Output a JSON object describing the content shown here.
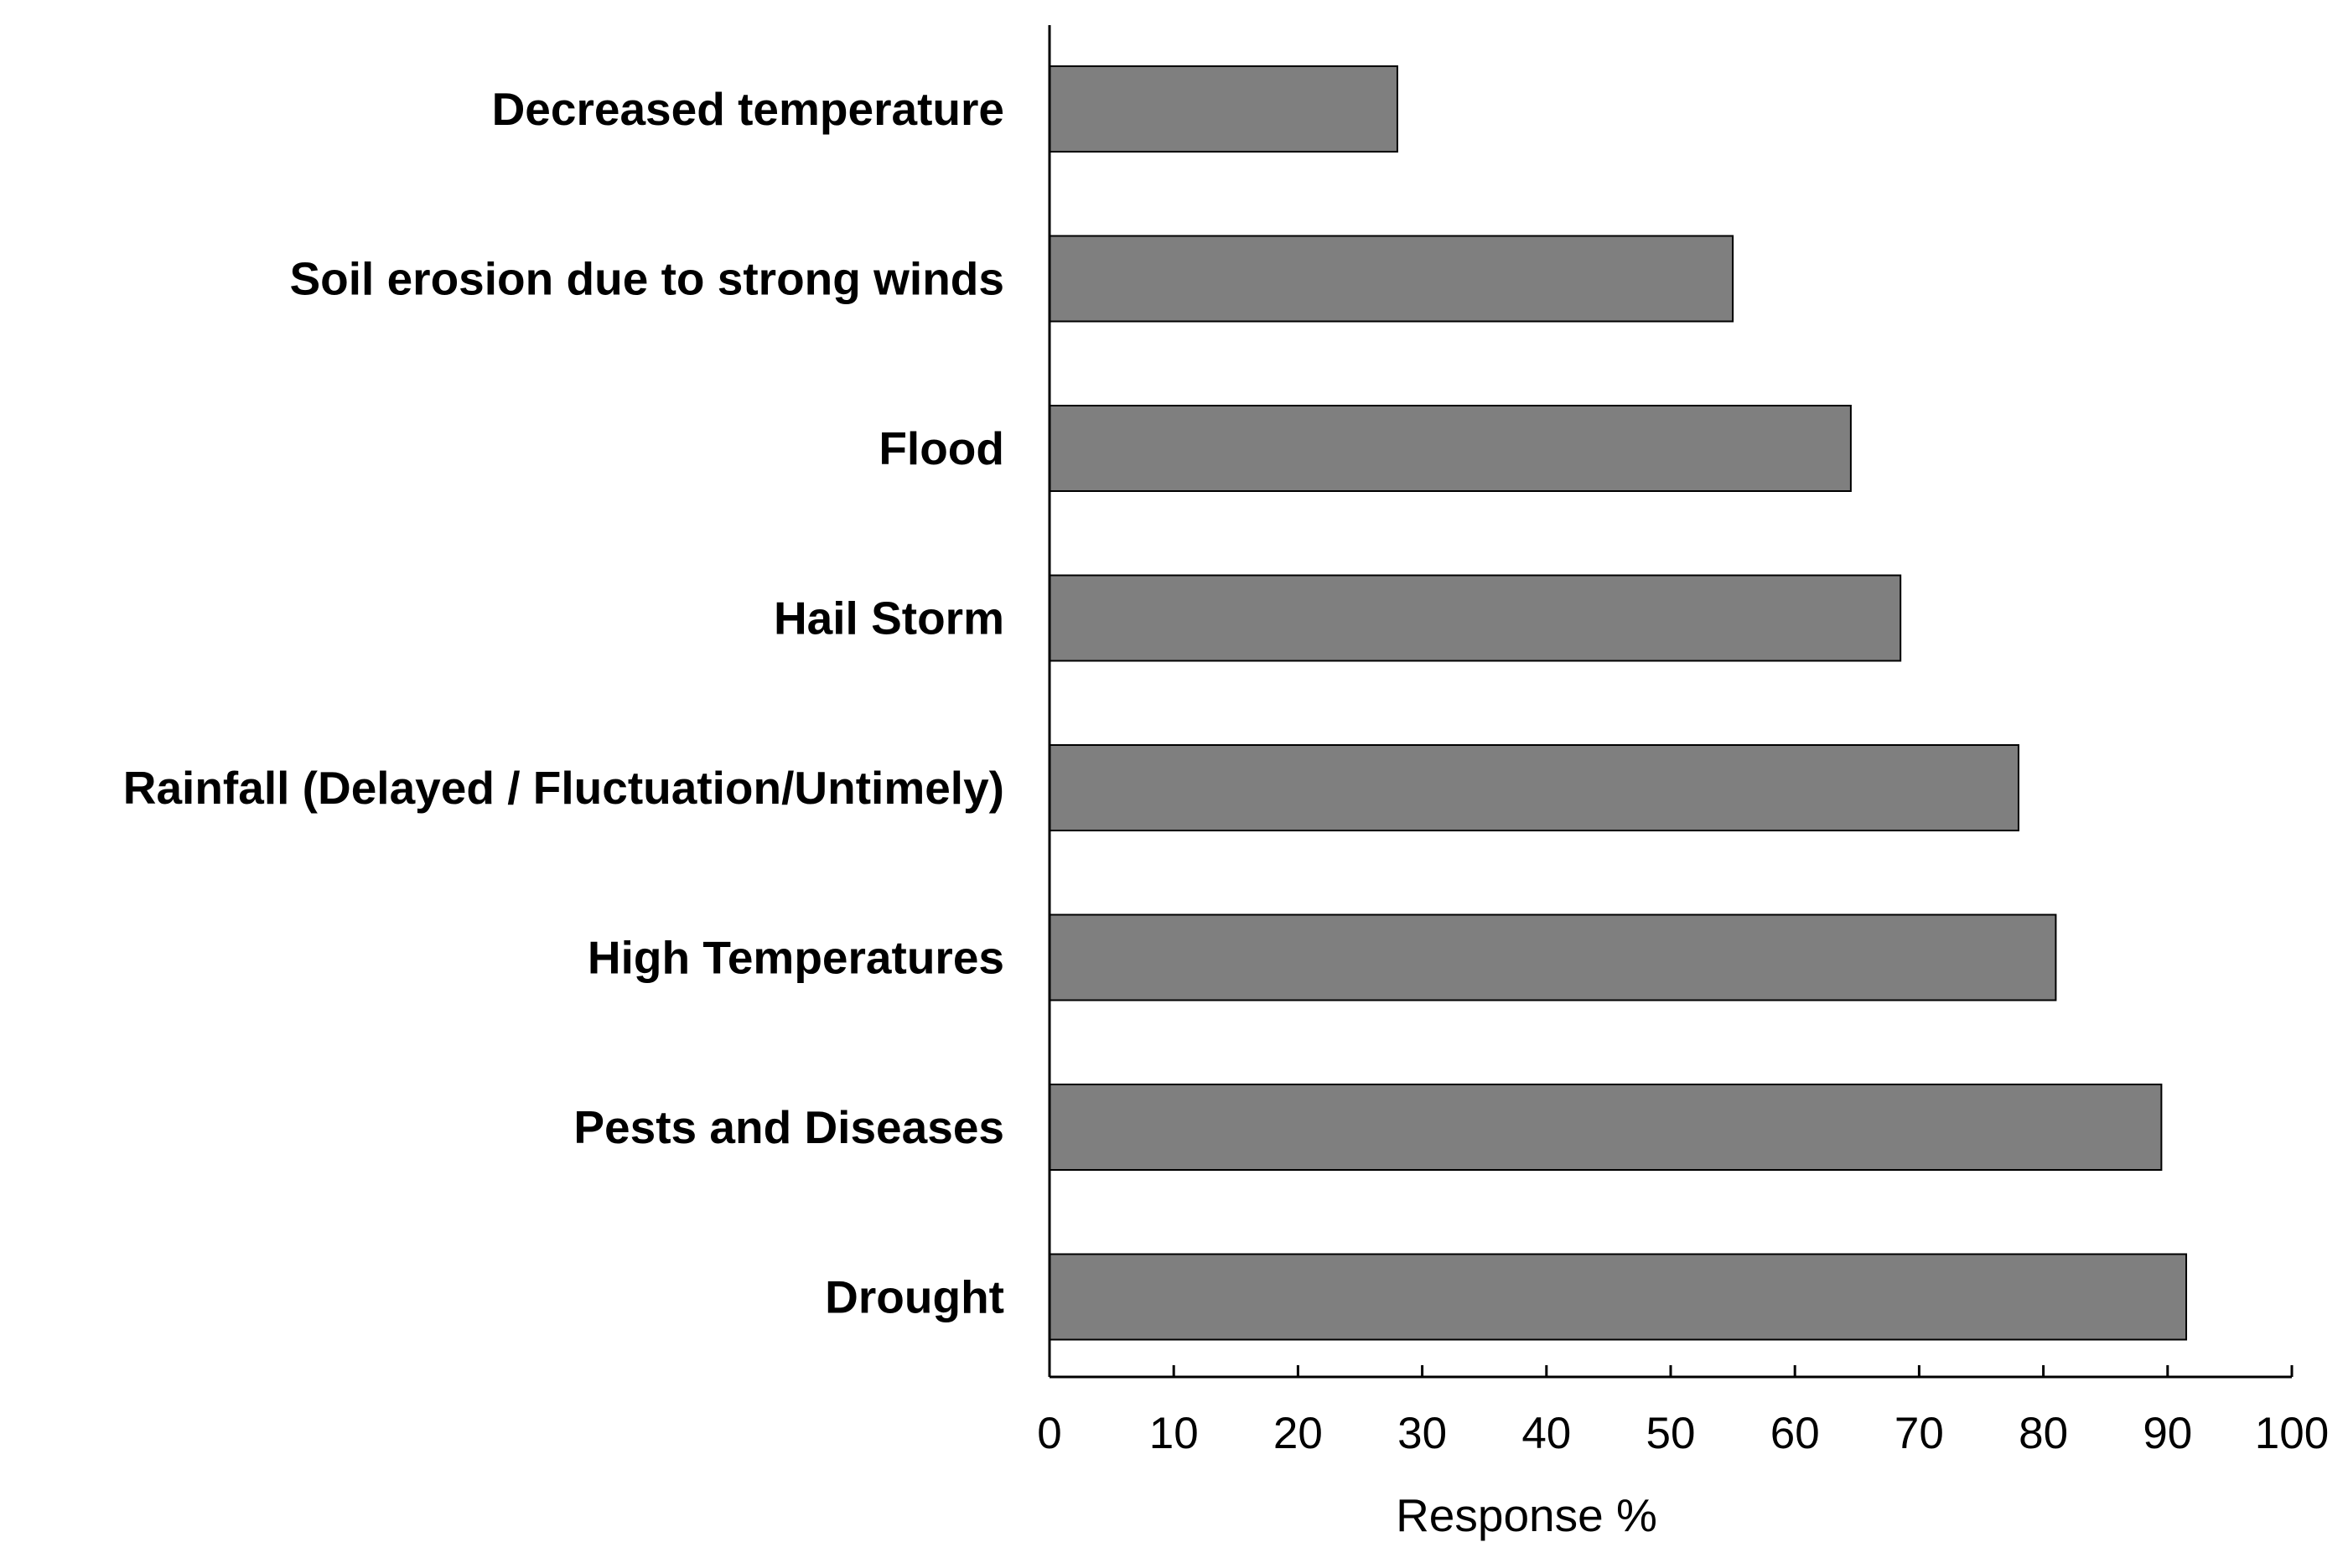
{
  "chart_data": {
    "type": "bar",
    "orientation": "horizontal",
    "categories": [
      "Decreased temperature",
      "Soil erosion due to strong winds",
      "Flood",
      "Hail Storm",
      "Rainfall (Delayed / Fluctuation/Untimely)",
      "High Temperatures",
      "Pests and Diseases",
      "Drought"
    ],
    "values": [
      28,
      55,
      64.5,
      68.5,
      78,
      81,
      89.5,
      91.5
    ],
    "title": "",
    "xlabel": "Response %",
    "ylabel": "",
    "xlim": [
      0,
      100
    ],
    "xticks": [
      "0",
      "10",
      "20",
      "30",
      "40",
      "50",
      "60",
      "70",
      "80",
      "90",
      "100"
    ],
    "grid": false,
    "legend": "none",
    "bar_color": "#7f7f7f"
  }
}
